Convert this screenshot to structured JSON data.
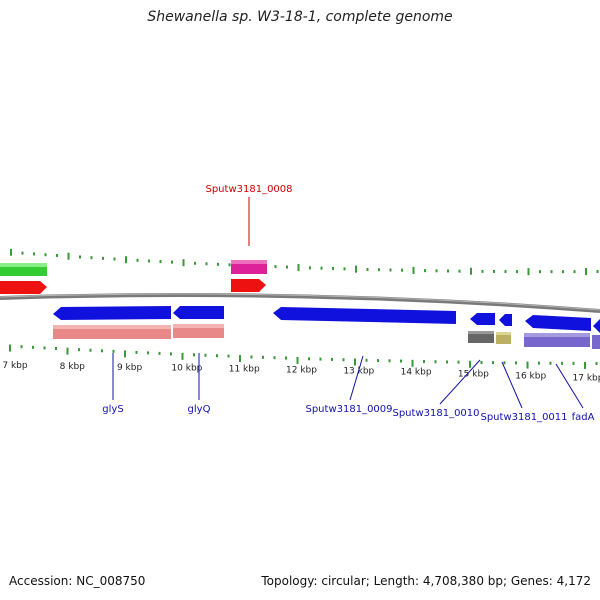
{
  "title": "Shewanella sp. W3-18-1, complete genome",
  "footer": {
    "accession": "Accession: NC_008750",
    "summary": "Topology: circular; Length: 4,708,380 bp; Genes: 4,172"
  },
  "scale": {
    "ticks": [
      "7 kbp",
      "8 kbp",
      "9 kbp",
      "10 kbp",
      "11 kbp",
      "12 kbp",
      "13 kbp",
      "14 kbp",
      "15 kbp",
      "16 kbp",
      "17 kbp"
    ]
  },
  "colors": {
    "backbone": "#7a7a7a",
    "tick": "#3a9a3a",
    "forward_cds": "#ee1111",
    "forward_gene": "#33cc33",
    "reverse_cds": "#1111dd",
    "reverse_gene": "#e88888",
    "trna": "#dd2299",
    "label_red": "#cc0000",
    "label_blue": "#1111aa"
  },
  "labels": {
    "sputw0008": "Sputw3181_0008",
    "glyS": "glyS",
    "glyQ": "glyQ",
    "sputw0009": "Sputw3181_0009",
    "sputw0010": "Sputw3181_0010",
    "sputw0011": "Sputw3181_0011",
    "fadA": "fadA"
  }
}
